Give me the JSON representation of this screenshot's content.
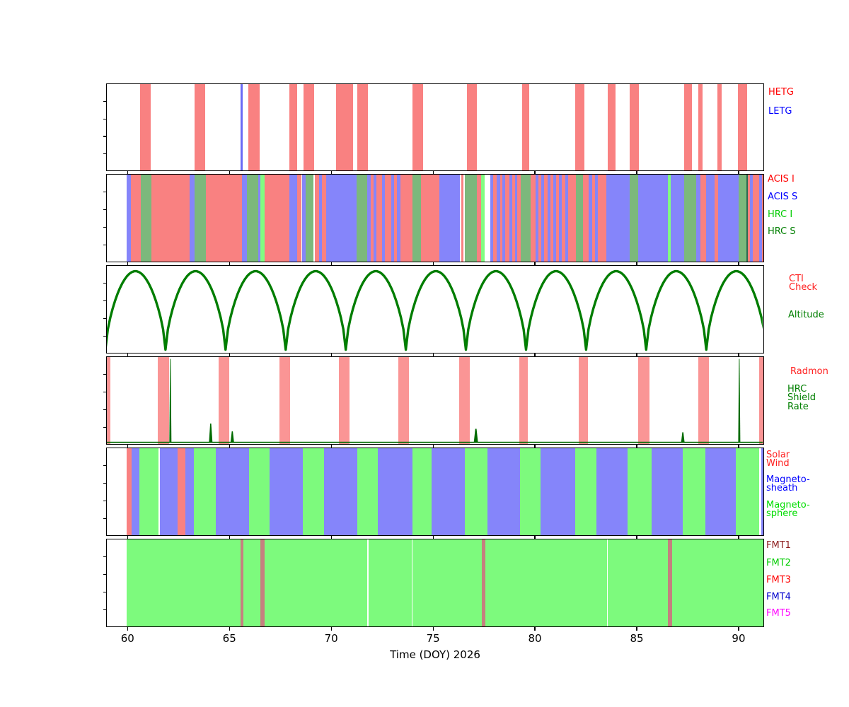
{
  "figure": {
    "xlabel": "Time (DOY) 2026",
    "x_ticks": [
      "60",
      "65",
      "70",
      "75",
      "80",
      "85",
      "90"
    ],
    "x_tick_values": [
      60,
      65,
      70,
      75,
      80,
      85,
      90
    ],
    "x_range": [
      59.0,
      91.2
    ]
  },
  "colors": {
    "salmon": "#f98181",
    "periwinkle": "#8585fa",
    "sage": "#7cb87c",
    "bright_green": "#81fd81",
    "letg_blue": "#6b6bf5",
    "altitude_green": "#007d00",
    "radmon_red": "#fa9595",
    "shield_green": "#006b00",
    "region_green": "#7dfa7d",
    "fmt_green": "#7dfa7d",
    "fmt_bar": "#c5807f",
    "dark_seg": "#2b6b4f",
    "white": "#ffffff"
  },
  "panels": [
    {
      "name": "gratings",
      "legend": [
        {
          "label": "HETG",
          "color": "#ff0000"
        },
        {
          "label": "LETG",
          "color": "#0000ff"
        }
      ]
    },
    {
      "name": "science-instruments",
      "legend": [
        {
          "label": "ACIS I",
          "color": "#ff0000"
        },
        {
          "label": "ACIS S",
          "color": "#0000ff"
        },
        {
          "label": "HRC I",
          "color": "#00cc00"
        },
        {
          "label": "HRC S",
          "color": "#007f00"
        }
      ]
    },
    {
      "name": "orbit",
      "legend": [
        {
          "label": "CTI\nCheck",
          "color": "#ff2020"
        },
        {
          "label": "Altitude",
          "color": "#007f00"
        }
      ]
    },
    {
      "name": "radiation",
      "legend": [
        {
          "label": "Radmon",
          "color": "#ff2020"
        },
        {
          "label": "HRC\nShield\nRate",
          "color": "#007f00"
        }
      ]
    },
    {
      "name": "magnetic-regions",
      "legend": [
        {
          "label": "Solar\nWind",
          "color": "#ff2020"
        },
        {
          "label": "Magneto-\nsheath",
          "color": "#0000ff"
        },
        {
          "label": "Magneto-\nsphere",
          "color": "#00dd00"
        }
      ]
    },
    {
      "name": "telemetry-formats",
      "legend": [
        {
          "label": "FMT1",
          "color": "#8b1a1a"
        },
        {
          "label": "FMT2",
          "color": "#00cc00"
        },
        {
          "label": "FMT3",
          "color": "#ff0000"
        },
        {
          "label": "FMT4",
          "color": "#0000cd"
        },
        {
          "label": "FMT5",
          "color": "#ff00ff"
        }
      ]
    }
  ],
  "chart_data": [
    {
      "type": "interval",
      "name": "gratings",
      "series": [
        {
          "name": "HETG",
          "color_key": "salmon",
          "intervals": [
            [
              60.63,
              61.16
            ],
            [
              63.29,
              63.84
            ],
            [
              65.96,
              66.49
            ],
            [
              67.97,
              68.36
            ],
            [
              68.64,
              69.17
            ],
            [
              70.26,
              71.09
            ],
            [
              71.3,
              71.83
            ],
            [
              74.0,
              74.51
            ],
            [
              76.69,
              77.18
            ],
            [
              79.39,
              79.75
            ],
            [
              82.01,
              82.46
            ],
            [
              83.6,
              83.98
            ],
            [
              84.68,
              85.12
            ],
            [
              87.34,
              87.74
            ],
            [
              88.03,
              88.24
            ],
            [
              88.96,
              89.19
            ],
            [
              90.0,
              90.44
            ]
          ]
        },
        {
          "name": "LETG",
          "color_key": "letg_blue",
          "intervals": [
            [
              65.58,
              65.66
            ]
          ]
        }
      ]
    },
    {
      "type": "interval",
      "name": "science-instruments",
      "legend_map": {
        "R": "ACIS I",
        "B": "ACIS S",
        "N": "HRC I",
        "G": "HRC S"
      },
      "color_keys": {
        "R": "salmon",
        "B": "periwinkle",
        "G": "sage",
        "N": "bright_green",
        "D": "dark_seg",
        "W": "white"
      },
      "segments": [
        [
          59.97,
          60.17,
          "B"
        ],
        [
          60.17,
          60.66,
          "R"
        ],
        [
          60.66,
          61.18,
          "G"
        ],
        [
          61.18,
          63.07,
          "R"
        ],
        [
          63.07,
          63.3,
          "B"
        ],
        [
          63.3,
          63.87,
          "G"
        ],
        [
          63.87,
          65.64,
          "R"
        ],
        [
          65.64,
          65.89,
          "B"
        ],
        [
          65.89,
          66.42,
          "G"
        ],
        [
          66.42,
          66.54,
          "B"
        ],
        [
          66.54,
          66.73,
          "N"
        ],
        [
          66.73,
          67.95,
          "R"
        ],
        [
          67.95,
          68.36,
          "B"
        ],
        [
          68.36,
          68.57,
          "R"
        ],
        [
          68.57,
          68.76,
          "B"
        ],
        [
          68.76,
          69.15,
          "G"
        ],
        [
          69.2,
          69.42,
          "R"
        ],
        [
          69.42,
          69.55,
          "B"
        ],
        [
          69.55,
          69.77,
          "R"
        ],
        [
          69.77,
          71.25,
          "B"
        ],
        [
          71.25,
          71.8,
          "G"
        ],
        [
          71.8,
          71.95,
          "B"
        ],
        [
          71.95,
          72.1,
          "R"
        ],
        [
          72.1,
          72.24,
          "B"
        ],
        [
          72.24,
          72.5,
          "R"
        ],
        [
          72.5,
          72.66,
          "B"
        ],
        [
          72.66,
          72.97,
          "R"
        ],
        [
          72.97,
          73.1,
          "B"
        ],
        [
          73.1,
          73.25,
          "R"
        ],
        [
          73.25,
          73.41,
          "B"
        ],
        [
          73.41,
          73.99,
          "R"
        ],
        [
          73.99,
          74.43,
          "G"
        ],
        [
          74.43,
          75.33,
          "R"
        ],
        [
          75.33,
          76.32,
          "B"
        ],
        [
          76.39,
          76.49,
          "R"
        ],
        [
          76.56,
          77.15,
          "G"
        ],
        [
          77.15,
          77.39,
          "R"
        ],
        [
          77.39,
          77.56,
          "N"
        ],
        [
          77.81,
          77.97,
          "B"
        ],
        [
          77.97,
          78.14,
          "R"
        ],
        [
          78.14,
          78.31,
          "B"
        ],
        [
          78.31,
          78.43,
          "R"
        ],
        [
          78.43,
          78.57,
          "B"
        ],
        [
          78.57,
          78.78,
          "R"
        ],
        [
          78.78,
          78.89,
          "B"
        ],
        [
          78.89,
          79.03,
          "R"
        ],
        [
          79.03,
          79.15,
          "B"
        ],
        [
          79.15,
          79.33,
          "R"
        ],
        [
          79.33,
          79.82,
          "G"
        ],
        [
          79.82,
          80.05,
          "R"
        ],
        [
          80.05,
          80.19,
          "B"
        ],
        [
          80.19,
          80.34,
          "R"
        ],
        [
          80.34,
          80.48,
          "B"
        ],
        [
          80.48,
          80.63,
          "R"
        ],
        [
          80.63,
          80.77,
          "B"
        ],
        [
          80.77,
          80.92,
          "R"
        ],
        [
          80.92,
          81.06,
          "B"
        ],
        [
          81.06,
          81.21,
          "R"
        ],
        [
          81.21,
          81.35,
          "B"
        ],
        [
          81.35,
          81.5,
          "R"
        ],
        [
          81.5,
          81.64,
          "B"
        ],
        [
          81.64,
          82.02,
          "R"
        ],
        [
          82.02,
          82.37,
          "G"
        ],
        [
          82.37,
          82.66,
          "R"
        ],
        [
          82.66,
          82.83,
          "B"
        ],
        [
          82.83,
          82.97,
          "R"
        ],
        [
          82.97,
          83.12,
          "B"
        ],
        [
          83.12,
          83.52,
          "R"
        ],
        [
          83.52,
          84.68,
          "B"
        ],
        [
          84.68,
          85.08,
          "G"
        ],
        [
          85.08,
          86.53,
          "B"
        ],
        [
          86.53,
          86.7,
          "N"
        ],
        [
          86.7,
          87.34,
          "B"
        ],
        [
          87.34,
          87.92,
          "G"
        ],
        [
          87.92,
          88.15,
          "B"
        ],
        [
          88.15,
          88.43,
          "R"
        ],
        [
          88.43,
          88.85,
          "B"
        ],
        [
          88.85,
          89.02,
          "R"
        ],
        [
          89.02,
          90.02,
          "B"
        ],
        [
          90.02,
          90.41,
          "G"
        ],
        [
          90.41,
          90.46,
          "D"
        ],
        [
          90.46,
          90.58,
          "R"
        ],
        [
          90.58,
          90.72,
          "B"
        ],
        [
          90.72,
          91.02,
          "R"
        ],
        [
          91.02,
          91.18,
          "B"
        ],
        [
          91.18,
          91.3,
          "R"
        ]
      ]
    },
    {
      "type": "line",
      "name": "altitude",
      "color_key": "altitude_green",
      "perigee_times": [
        58.93,
        61.88,
        64.83,
        67.78,
        70.73,
        73.68,
        76.63,
        79.58,
        82.53,
        85.48,
        88.43,
        91.38
      ],
      "peak_frac": 0.955,
      "min_frac": 0.02,
      "cti_check_intervals": []
    },
    {
      "type": "mixed",
      "name": "radiation",
      "radmon_color_key": "radmon_red",
      "radmon_intervals": [
        [
          58.98,
          59.16
        ],
        [
          61.51,
          62.06
        ],
        [
          64.5,
          65.02
        ],
        [
          67.47,
          68.01
        ],
        [
          70.38,
          70.92
        ],
        [
          73.31,
          73.85
        ],
        [
          76.29,
          76.81
        ],
        [
          79.24,
          79.68
        ],
        [
          82.17,
          82.62
        ],
        [
          85.1,
          85.64
        ],
        [
          88.03,
          88.55
        ],
        [
          91.04,
          91.3
        ]
      ],
      "shield_color_key": "shield_green",
      "shield_spikes": [
        {
          "t": 62.12,
          "h": 0.97,
          "w": 3
        },
        {
          "t": 64.1,
          "h": 0.22,
          "w": 5
        },
        {
          "t": 65.16,
          "h": 0.13,
          "w": 5
        },
        {
          "t": 77.12,
          "h": 0.16,
          "w": 6
        },
        {
          "t": 87.28,
          "h": 0.12,
          "w": 5
        },
        {
          "t": 90.05,
          "h": 0.97,
          "w": 3
        }
      ]
    },
    {
      "type": "interval",
      "name": "magnetic-regions",
      "legend_map": {
        "R": "Solar Wind",
        "B": "Magneto-sheath",
        "G": "Magneto-sphere"
      },
      "color_keys": {
        "R": "salmon",
        "B": "periwinkle",
        "G": "region_green"
      },
      "segments": [
        [
          59.97,
          60.22,
          "R"
        ],
        [
          60.22,
          60.6,
          "B"
        ],
        [
          60.6,
          61.55,
          "G"
        ],
        [
          61.61,
          62.49,
          "B"
        ],
        [
          62.49,
          62.84,
          "R"
        ],
        [
          62.84,
          63.26,
          "B"
        ],
        [
          63.26,
          64.36,
          "G"
        ],
        [
          64.36,
          65.99,
          "B"
        ],
        [
          65.99,
          66.99,
          "G"
        ],
        [
          66.99,
          68.63,
          "B"
        ],
        [
          68.63,
          69.65,
          "G"
        ],
        [
          69.65,
          71.28,
          "B"
        ],
        [
          71.28,
          72.29,
          "G"
        ],
        [
          72.29,
          73.99,
          "B"
        ],
        [
          73.99,
          74.96,
          "G"
        ],
        [
          74.96,
          76.58,
          "B"
        ],
        [
          76.58,
          77.7,
          "G"
        ],
        [
          77.7,
          79.3,
          "B"
        ],
        [
          79.3,
          80.28,
          "G"
        ],
        [
          80.28,
          81.98,
          "B"
        ],
        [
          81.98,
          83.02,
          "G"
        ],
        [
          83.02,
          84.56,
          "B"
        ],
        [
          84.56,
          85.74,
          "G"
        ],
        [
          85.74,
          87.26,
          "B"
        ],
        [
          87.26,
          88.38,
          "G"
        ],
        [
          88.38,
          89.89,
          "B"
        ],
        [
          89.89,
          91.04,
          "G"
        ],
        [
          91.13,
          91.3,
          "B"
        ]
      ]
    },
    {
      "type": "fmt",
      "name": "telemetry-formats",
      "base": {
        "interval": [
          59.97,
          91.3
        ],
        "color_key": "fmt_green",
        "label": "FMT2"
      },
      "bars": {
        "color_key": "fmt_bar",
        "intervals": [
          [
            65.56,
            65.69
          ],
          [
            66.54,
            66.73
          ],
          [
            77.4,
            77.57
          ],
          [
            86.56,
            86.74
          ]
        ]
      },
      "separators": {
        "color_key": "white",
        "times": [
          71.8,
          73.97,
          83.56
        ]
      }
    }
  ]
}
